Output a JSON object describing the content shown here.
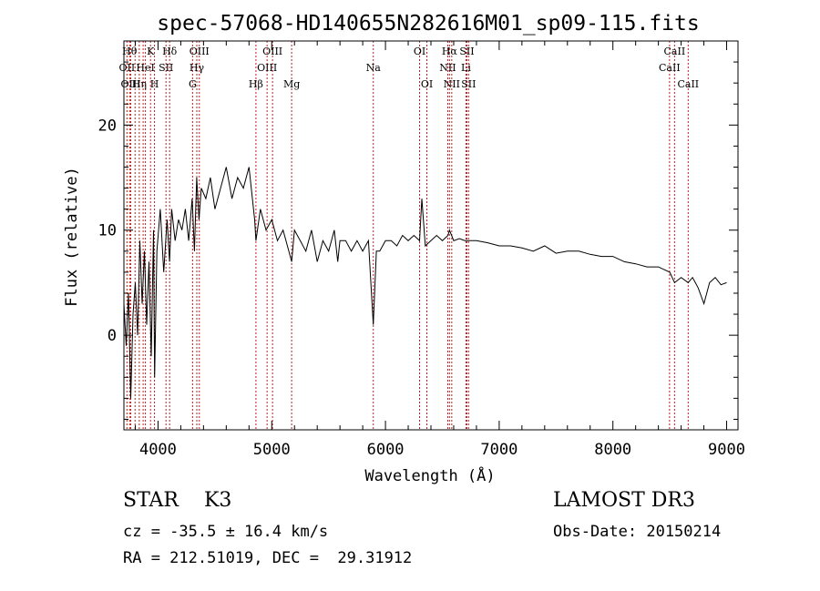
{
  "chart_data": {
    "type": "line",
    "title": "spec-57068-HD140655N282616M01_sp09-115.fits",
    "xlabel": "Wavelength (Å)",
    "ylabel": "Flux (relative)",
    "xlim": [
      3700,
      9100
    ],
    "ylim": [
      -9,
      28
    ],
    "x_ticks": [
      4000,
      5000,
      6000,
      7000,
      8000,
      9000
    ],
    "x_tick_labels": [
      "4000",
      "5000",
      "6000",
      "7000",
      "8000",
      "9000"
    ],
    "y_ticks": [
      0,
      10,
      20
    ],
    "y_tick_labels": [
      "0",
      "10",
      "20"
    ],
    "grid": false,
    "series": [
      {
        "x": [
          3700,
          3720,
          3740,
          3760,
          3780,
          3800,
          3820,
          3840,
          3860,
          3880,
          3900,
          3920,
          3940,
          3960,
          3970,
          3990,
          4020,
          4050,
          4080,
          4101,
          4120,
          4150,
          4180,
          4210,
          4240,
          4270,
          4300,
          4320,
          4340,
          4360,
          4380,
          4420,
          4460,
          4500,
          4550,
          4600,
          4650,
          4700,
          4750,
          4800,
          4850,
          4861,
          4900,
          4950,
          5000,
          5050,
          5100,
          5150,
          5175,
          5200,
          5250,
          5300,
          5350,
          5400,
          5450,
          5500,
          5550,
          5580,
          5600,
          5650,
          5700,
          5750,
          5800,
          5850,
          5893,
          5920,
          5950,
          6000,
          6050,
          6100,
          6150,
          6200,
          6250,
          6300,
          6320,
          6350,
          6400,
          6450,
          6500,
          6550,
          6563,
          6600,
          6650,
          6700,
          6750,
          6800,
          6900,
          7000,
          7100,
          7200,
          7300,
          7400,
          7500,
          7600,
          7700,
          7800,
          7900,
          8000,
          8100,
          8200,
          8300,
          8400,
          8500,
          8542,
          8600,
          8662,
          8700,
          8750,
          8800,
          8850,
          8900,
          8950,
          9000
        ],
        "y": [
          3,
          -1,
          4,
          -6,
          2,
          5,
          0,
          9,
          3,
          8,
          1,
          7,
          -2,
          10,
          -4,
          8,
          12,
          6,
          11,
          7,
          12,
          9,
          11,
          10,
          12,
          9,
          13,
          8,
          15,
          11,
          14,
          13,
          15,
          12,
          14,
          16,
          13,
          15,
          14,
          16,
          11,
          9,
          12,
          10,
          11,
          9,
          10,
          8,
          7,
          10,
          9,
          8,
          10,
          7,
          9,
          8,
          10,
          7,
          9,
          9,
          8,
          9,
          8,
          9,
          1,
          8,
          8,
          9,
          9,
          8.5,
          9.5,
          9,
          9.5,
          9,
          13,
          8.5,
          9,
          9.5,
          9,
          9.5,
          10,
          9,
          9.2,
          9,
          9,
          9,
          8.8,
          8.5,
          8.5,
          8.3,
          8,
          8.5,
          7.8,
          8,
          8,
          7.7,
          7.5,
          7.5,
          7,
          6.8,
          6.5,
          6.5,
          6,
          5,
          5.5,
          5,
          5.5,
          4.5,
          3,
          5,
          5.5,
          4.8,
          5
        ]
      }
    ],
    "lines": [
      {
        "x": 3727,
        "label": "OII",
        "row": 1
      },
      {
        "x": 3750,
        "label": "Hθ",
        "row": 0
      },
      {
        "x": 3760,
        "label": "OIII",
        "row": 2
      },
      {
        "x": 3798,
        "label": "",
        "row": 0
      },
      {
        "x": 3835,
        "label": "Hη",
        "row": 2
      },
      {
        "x": 3869,
        "label": "",
        "row": 0
      },
      {
        "x": 3889,
        "label": "HeI",
        "row": 1
      },
      {
        "x": 3934,
        "label": "K",
        "row": 0
      },
      {
        "x": 3969,
        "label": "H",
        "row": 2
      },
      {
        "x": 4070,
        "label": "SII",
        "row": 1
      },
      {
        "x": 4102,
        "label": "Hδ",
        "row": 0
      },
      {
        "x": 4304,
        "label": "G",
        "row": 2
      },
      {
        "x": 4341,
        "label": "Hγ",
        "row": 1
      },
      {
        "x": 4363,
        "label": "OIII",
        "row": 0
      },
      {
        "x": 4861,
        "label": "Hβ",
        "row": 2
      },
      {
        "x": 4959,
        "label": "OIII",
        "row": 1
      },
      {
        "x": 5007,
        "label": "OIII",
        "row": 0
      },
      {
        "x": 5175,
        "label": "Mg",
        "row": 2
      },
      {
        "x": 5893,
        "label": "Na",
        "row": 1
      },
      {
        "x": 6300,
        "label": "OI",
        "row": 0
      },
      {
        "x": 6364,
        "label": "OI",
        "row": 2
      },
      {
        "x": 6548,
        "label": "NII",
        "row": 1
      },
      {
        "x": 6563,
        "label": "Hα",
        "row": 0
      },
      {
        "x": 6583,
        "label": "NII",
        "row": 2
      },
      {
        "x": 6708,
        "label": "Li",
        "row": 1
      },
      {
        "x": 6716,
        "label": "SII",
        "row": 0
      },
      {
        "x": 6731,
        "label": "SII",
        "row": 2
      },
      {
        "x": 8498,
        "label": "CaII",
        "row": 1
      },
      {
        "x": 8542,
        "label": "CaII",
        "row": 0
      },
      {
        "x": 8662,
        "label": "CaII",
        "row": 2
      }
    ]
  },
  "info": {
    "class": "STAR    K3",
    "cz": "cz = -35.5 ± 16.4 km/s",
    "coords": "RA = 212.51019, DEC =  29.31912",
    "survey": "LAMOST DR3",
    "obs_date": "Obs-Date: 20150214"
  }
}
